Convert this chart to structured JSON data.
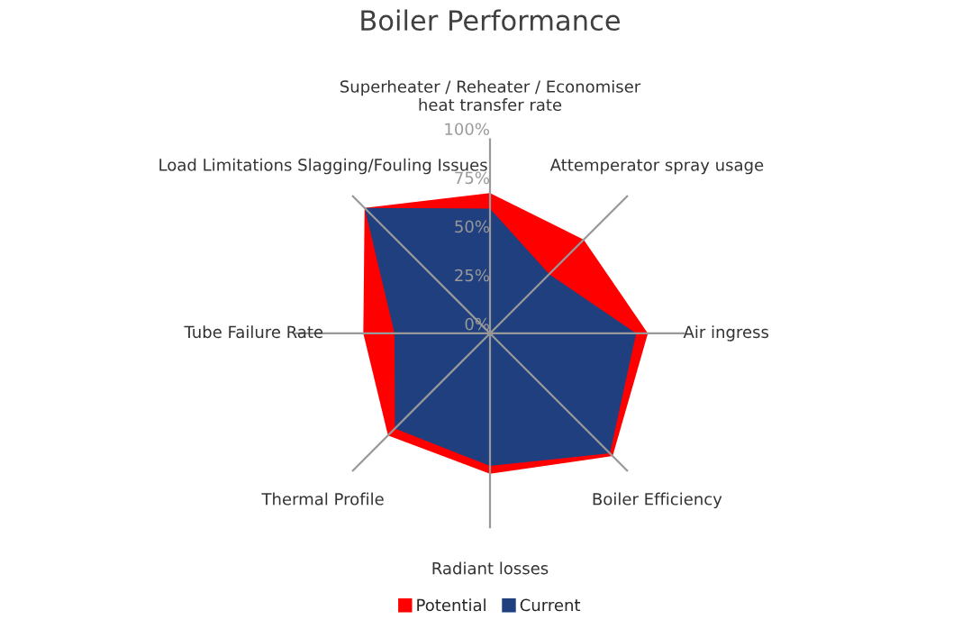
{
  "chart_data": {
    "type": "radar",
    "title": "Boiler Performance",
    "categories": [
      "Superheater / Reheater / Economiser\nheat transfer rate",
      "Attemperator spray usage",
      "Air ingress",
      "Boiler Efficiency",
      "Radiant losses",
      "Thermal Profile",
      "Tube Failure Rate",
      "Load Limitations Slagging/Fouling Issues"
    ],
    "series": [
      {
        "name": "Potential",
        "color": "#ff0000",
        "values": [
          72,
          68,
          81,
          89,
          72,
          74,
          65,
          91
        ]
      },
      {
        "name": "Current",
        "color": "#1f3f7f",
        "values": [
          64,
          43,
          75,
          87,
          68,
          69,
          49,
          91
        ]
      }
    ],
    "ylim": [
      0,
      100
    ],
    "yticks": [
      {
        "value": 0,
        "label": "0%"
      },
      {
        "value": 25,
        "label": "25%"
      },
      {
        "value": 50,
        "label": "50%"
      },
      {
        "value": 75,
        "label": "75%"
      },
      {
        "value": 100,
        "label": "100%"
      }
    ],
    "grid": "x",
    "legend": "bottom"
  }
}
